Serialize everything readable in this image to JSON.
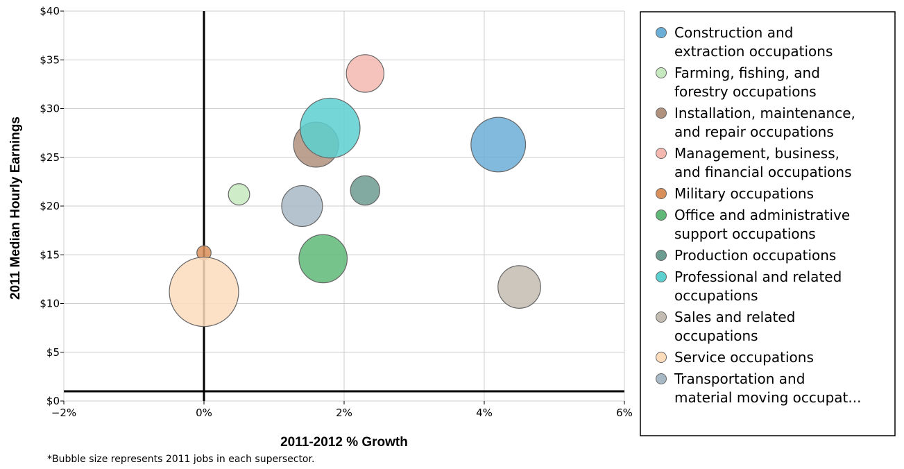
{
  "chart_data": {
    "type": "scatter",
    "title": "",
    "xlabel": "2011-2012 % Growth",
    "ylabel": "2011 Median Hourly Earnings",
    "note": "*Bubble size represents 2011 jobs in each supersector.",
    "xlim": [
      -2,
      6
    ],
    "ylim": [
      0,
      40
    ],
    "x_ticks": [
      -2,
      0,
      2,
      4,
      6
    ],
    "x_tick_labels": [
      "−2%",
      "0%",
      "2%",
      "4%",
      "6%"
    ],
    "y_ticks": [
      0,
      5,
      10,
      15,
      20,
      25,
      30,
      35,
      40
    ],
    "y_tick_labels": [
      "$0",
      "$5",
      "$10",
      "$15",
      "$20",
      "$25",
      "$30",
      "$35",
      "$40"
    ],
    "grid": true,
    "reference_lines": {
      "x": 0,
      "y": 1
    },
    "legend_position": "right",
    "series": [
      {
        "name": "Construction and extraction occupations",
        "name_lines": [
          "Construction and",
          "extraction occupations"
        ],
        "color": "#6baed6",
        "x": 4.2,
        "y": 26.3,
        "size": 5.9
      },
      {
        "name": "Farming, fishing, and forestry occupations",
        "name_lines": [
          "Farming, fishing, and",
          "forestry occupations"
        ],
        "color": "#c7e9c0",
        "x": 0.5,
        "y": 21.2,
        "size": 0.9
      },
      {
        "name": "Installation, maintenance, and repair occupations",
        "name_lines": [
          "Installation, maintenance,",
          "and repair occupations"
        ],
        "color": "#b0917d",
        "x": 1.6,
        "y": 26.3,
        "size": 4.0
      },
      {
        "name": "Management, business, and financial occupations",
        "name_lines": [
          "Management, business,",
          "and financial occupations"
        ],
        "color": "#f4b8b0",
        "x": 2.3,
        "y": 33.6,
        "size": 2.8
      },
      {
        "name": "Military occupations",
        "name_lines": [
          "Military occupations"
        ],
        "color": "#d98f5a",
        "x": 0.0,
        "y": 15.2,
        "size": 0.4
      },
      {
        "name": "Office and administrative support occupations",
        "name_lines": [
          "Office and administrative",
          "support occupations"
        ],
        "color": "#5fb878",
        "x": 1.7,
        "y": 14.6,
        "size": 4.6
      },
      {
        "name": "Production occupations",
        "name_lines": [
          "Production occupations"
        ],
        "color": "#6c9b8f",
        "x": 2.3,
        "y": 21.6,
        "size": 1.7
      },
      {
        "name": "Professional and related occupations",
        "name_lines": [
          "Professional and related",
          "occupations"
        ],
        "color": "#5ccfcf",
        "x": 1.8,
        "y": 28.0,
        "size": 7.1
      },
      {
        "name": "Sales and related occupations",
        "name_lines": [
          "Sales and related",
          "occupations"
        ],
        "color": "#c3bcb2",
        "x": 4.5,
        "y": 11.7,
        "size": 3.6
      },
      {
        "name": "Service occupations",
        "name_lines": [
          "Service occupations"
        ],
        "color": "#fddcbc",
        "x": 0.0,
        "y": 11.2,
        "size": 9.5
      },
      {
        "name": "Transportation and material moving occupations",
        "name_lines": [
          "Transportation and",
          "material moving occupat..."
        ],
        "color": "#a8b9c6",
        "x": 1.4,
        "y": 20.0,
        "size": 3.3
      }
    ]
  }
}
